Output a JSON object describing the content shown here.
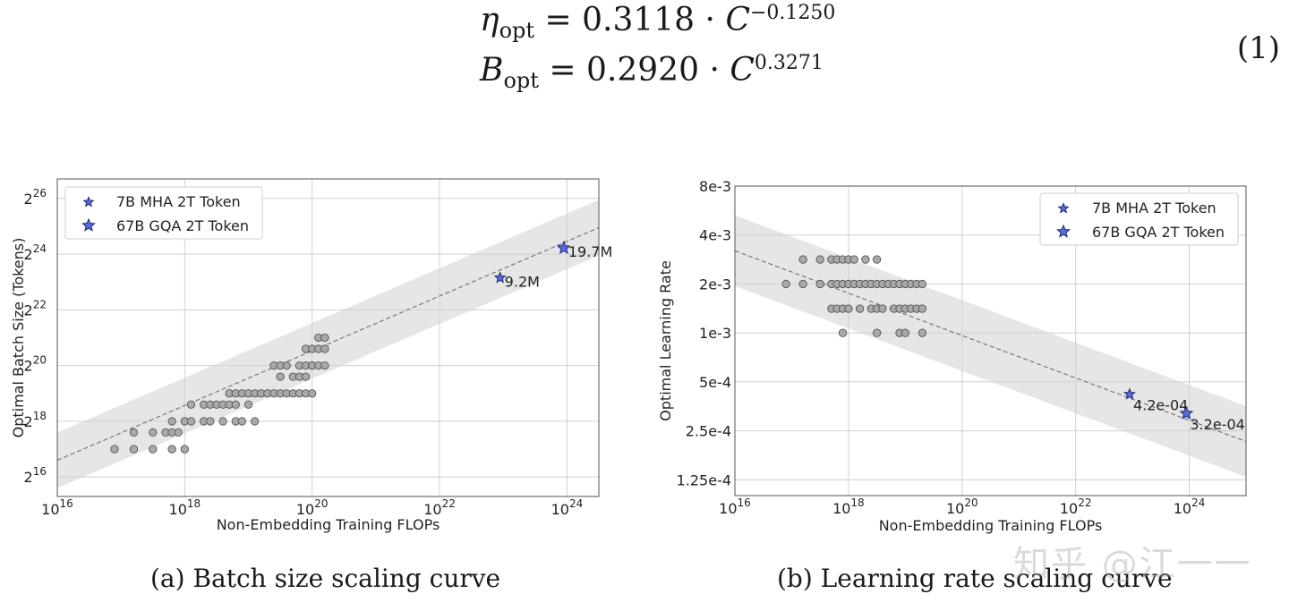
{
  "equations": {
    "eq1": {
      "lhs_symbol": "η",
      "lhs_sub": "opt",
      "coef": "0.3118",
      "var": "C",
      "exp": "−0.1250"
    },
    "eq2": {
      "lhs_symbol": "B",
      "lhs_sub": "opt",
      "coef": "0.2920",
      "var": "C",
      "exp": "0.3271"
    },
    "number": "(1)",
    "equals": "=",
    "dot": "·"
  },
  "captions": {
    "a": "(a)  Batch size scaling curve",
    "b": "(b)  Learning rate scaling curve"
  },
  "watermark": "知乎 @江一一",
  "chart_data": [
    {
      "type": "scatter",
      "title": "",
      "xlabel": "Non-Embedding Training FLOPs",
      "ylabel": "Optimal Batch Size (Tokens)",
      "xscale": "log10",
      "yscale": "log2",
      "xlim_exp10": [
        16,
        24.5
      ],
      "ylim_exp2": [
        15.3,
        26.7
      ],
      "x_ticks": [
        {
          "base": "10",
          "exp": "16",
          "v": 16
        },
        {
          "base": "10",
          "exp": "18",
          "v": 18
        },
        {
          "base": "10",
          "exp": "20",
          "v": 20
        },
        {
          "base": "10",
          "exp": "22",
          "v": 22
        },
        {
          "base": "10",
          "exp": "24",
          "v": 24
        }
      ],
      "y_ticks": [
        {
          "base": "2",
          "exp": "16",
          "v": 16
        },
        {
          "base": "2",
          "exp": "18",
          "v": 18
        },
        {
          "base": "2",
          "exp": "20",
          "v": 20
        },
        {
          "base": "2",
          "exp": "22",
          "v": 22
        },
        {
          "base": "2",
          "exp": "24",
          "v": 24
        },
        {
          "base": "2",
          "exp": "26",
          "v": 26
        }
      ],
      "grid": true,
      "legend": {
        "placement": "top-left",
        "entries": [
          "7B MHA 2T Token",
          "67B GQA 2T Token"
        ]
      },
      "fit": {
        "log10_x": [
          16,
          24.5
        ],
        "log2_y": [
          16.6,
          24.95
        ]
      },
      "band_halfwidth_log2": 1.0,
      "points": [
        [
          16.9,
          17
        ],
        [
          17.2,
          17
        ],
        [
          17.2,
          17.6
        ],
        [
          17.5,
          17
        ],
        [
          17.5,
          17.6
        ],
        [
          17.7,
          17.6
        ],
        [
          17.8,
          17
        ],
        [
          17.8,
          17.6
        ],
        [
          17.8,
          18
        ],
        [
          17.9,
          17.6
        ],
        [
          18.0,
          17
        ],
        [
          18.0,
          18
        ],
        [
          18.1,
          18
        ],
        [
          18.1,
          18.6
        ],
        [
          18.3,
          18
        ],
        [
          18.3,
          18.6
        ],
        [
          18.4,
          18.6
        ],
        [
          18.4,
          18
        ],
        [
          18.5,
          18.6
        ],
        [
          18.6,
          18.6
        ],
        [
          18.6,
          18
        ],
        [
          18.7,
          18.6
        ],
        [
          18.7,
          19
        ],
        [
          18.8,
          18
        ],
        [
          18.8,
          18.6
        ],
        [
          18.8,
          19
        ],
        [
          18.9,
          18
        ],
        [
          18.9,
          19
        ],
        [
          19.0,
          18.6
        ],
        [
          19.0,
          19
        ],
        [
          19.1,
          19
        ],
        [
          19.1,
          18
        ],
        [
          19.2,
          19
        ],
        [
          19.3,
          19
        ],
        [
          19.4,
          19
        ],
        [
          19.4,
          20
        ],
        [
          19.5,
          19
        ],
        [
          19.5,
          19.6
        ],
        [
          19.5,
          20
        ],
        [
          19.6,
          19
        ],
        [
          19.6,
          20
        ],
        [
          19.7,
          19
        ],
        [
          19.7,
          19.6
        ],
        [
          19.8,
          19
        ],
        [
          19.8,
          20
        ],
        [
          19.8,
          19.6
        ],
        [
          19.9,
          19
        ],
        [
          19.9,
          20
        ],
        [
          19.9,
          19.6
        ],
        [
          19.9,
          20.6
        ],
        [
          20.0,
          19
        ],
        [
          20.0,
          20
        ],
        [
          20.0,
          20.6
        ],
        [
          20.0,
          20
        ],
        [
          20.1,
          20
        ],
        [
          20.1,
          20.6
        ],
        [
          20.1,
          21
        ],
        [
          20.2,
          20
        ],
        [
          20.2,
          20.6
        ],
        [
          20.2,
          21
        ]
      ],
      "stars": [
        {
          "name": "7B MHA 2T Token",
          "x_exp10": 22.95,
          "y_exp2": 23.15,
          "label": "9.2M",
          "size": "small"
        },
        {
          "name": "67B GQA 2T Token",
          "x_exp10": 23.95,
          "y_exp2": 24.22,
          "label": "19.7M",
          "size": "large"
        }
      ]
    },
    {
      "type": "scatter",
      "title": "",
      "xlabel": "Non-Embedding Training FLOPs",
      "ylabel": "Optimal Learning Rate",
      "xscale": "log10",
      "yscale": "log2",
      "xlim_exp10": [
        16,
        25
      ],
      "y_ticks": [
        {
          "label": "1.25e-4",
          "v": 0.000125
        },
        {
          "label": "2.5e-4",
          "v": 0.00025
        },
        {
          "label": "5e-4",
          "v": 0.0005
        },
        {
          "label": "1e-3",
          "v": 0.001
        },
        {
          "label": "2e-3",
          "v": 0.002
        },
        {
          "label": "4e-3",
          "v": 0.004
        },
        {
          "label": "8e-3",
          "v": 0.008
        }
      ],
      "x_ticks": [
        {
          "base": "10",
          "exp": "16",
          "v": 16
        },
        {
          "base": "10",
          "exp": "18",
          "v": 18
        },
        {
          "base": "10",
          "exp": "20",
          "v": 20
        },
        {
          "base": "10",
          "exp": "22",
          "v": 22
        },
        {
          "base": "10",
          "exp": "24",
          "v": 24
        }
      ],
      "ylim": [
        0.0001,
        0.008
      ],
      "grid": true,
      "legend": {
        "placement": "top-right",
        "entries": [
          "7B MHA 2T Token",
          "67B GQA 2T Token"
        ]
      },
      "fit": {
        "log10_x": [
          16,
          25
        ],
        "y": [
          0.0032,
          0.000215
        ]
      },
      "band_factor": 1.65,
      "points": [
        [
          16.9,
          0.002
        ],
        [
          17.2,
          0.002
        ],
        [
          17.2,
          0.00283
        ],
        [
          17.5,
          0.002
        ],
        [
          17.5,
          0.00283
        ],
        [
          17.7,
          0.002
        ],
        [
          17.7,
          0.00283
        ],
        [
          17.7,
          0.00141
        ],
        [
          17.8,
          0.002
        ],
        [
          17.8,
          0.00283
        ],
        [
          17.8,
          0.00141
        ],
        [
          17.9,
          0.002
        ],
        [
          17.9,
          0.00283
        ],
        [
          17.9,
          0.00141
        ],
        [
          17.9,
          0.001
        ],
        [
          18.0,
          0.002
        ],
        [
          18.0,
          0.00283
        ],
        [
          18.0,
          0.00141
        ],
        [
          18.1,
          0.002
        ],
        [
          18.1,
          0.00283
        ],
        [
          18.2,
          0.002
        ],
        [
          18.2,
          0.00141
        ],
        [
          18.3,
          0.002
        ],
        [
          18.3,
          0.00283
        ],
        [
          18.4,
          0.002
        ],
        [
          18.4,
          0.00141
        ],
        [
          18.5,
          0.002
        ],
        [
          18.5,
          0.00283
        ],
        [
          18.5,
          0.00141
        ],
        [
          18.5,
          0.001
        ],
        [
          18.6,
          0.002
        ],
        [
          18.6,
          0.00141
        ],
        [
          18.7,
          0.002
        ],
        [
          18.8,
          0.002
        ],
        [
          18.8,
          0.00141
        ],
        [
          18.9,
          0.002
        ],
        [
          18.9,
          0.00141
        ],
        [
          18.9,
          0.001
        ],
        [
          19.0,
          0.002
        ],
        [
          19.0,
          0.00141
        ],
        [
          19.0,
          0.001
        ],
        [
          19.1,
          0.002
        ],
        [
          19.1,
          0.00141
        ],
        [
          19.2,
          0.002
        ],
        [
          19.2,
          0.00141
        ],
        [
          19.3,
          0.002
        ],
        [
          19.3,
          0.00141
        ],
        [
          19.3,
          0.001
        ]
      ],
      "stars": [
        {
          "name": "7B MHA 2T Token",
          "x_exp10": 22.95,
          "y": 0.00042,
          "label": "4.2e-04",
          "size": "small"
        },
        {
          "name": "67B GQA 2T Token",
          "x_exp10": 23.95,
          "y": 0.00032,
          "label": "3.2e-04",
          "size": "large"
        }
      ]
    }
  ]
}
